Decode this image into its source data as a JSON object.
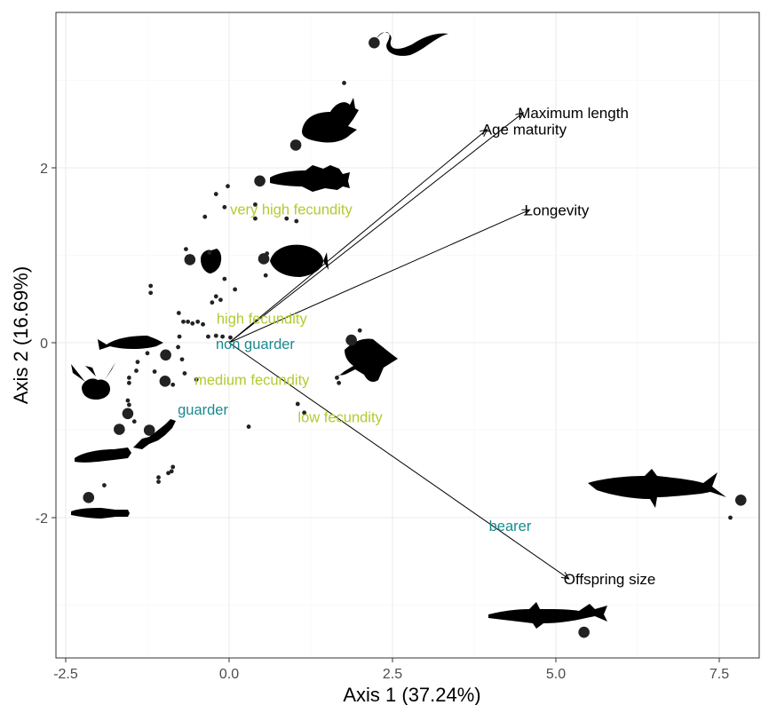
{
  "chart_data": {
    "type": "scatter",
    "xlabel": "Axis 1 (37.24%)",
    "ylabel": "Axis 2 (16.69%)",
    "xlim": [
      -2.6,
      8.2
    ],
    "ylim": [
      -3.65,
      3.8
    ],
    "x_ticks": [
      -2.5,
      0.0,
      2.5,
      5.0,
      7.5
    ],
    "x_tick_labels": [
      "-2.5",
      "0.0",
      "2.5",
      "5.0",
      "7.5"
    ],
    "y_ticks": [
      -2,
      0,
      2
    ],
    "y_tick_labels": [
      "-2",
      "0",
      "2"
    ],
    "grid": true,
    "colors": {
      "black": "#000000",
      "fecundity": "#b5c930",
      "parental_care": "#1a8a8f",
      "point": "#222222",
      "grid": "#ebebeb"
    },
    "vectors": [
      {
        "label": "Maximum length",
        "x": 4.5,
        "y": 2.63
      },
      {
        "label": "Age maturity",
        "x": 3.95,
        "y": 2.44
      },
      {
        "label": "Longevity",
        "x": 4.6,
        "y": 1.52
      },
      {
        "label": "Offspring size",
        "x": 5.2,
        "y": -2.7
      }
    ],
    "factor_labels": [
      {
        "label": "very high fecundity",
        "group": "fecundity",
        "x": 0.95,
        "y": 1.53
      },
      {
        "label": "high fecundity",
        "group": "fecundity",
        "x": 0.5,
        "y": 0.28
      },
      {
        "label": "medium fecundity",
        "group": "fecundity",
        "x": 0.35,
        "y": -0.42
      },
      {
        "label": "low fecundity",
        "group": "fecundity",
        "x": 1.7,
        "y": -0.85
      },
      {
        "label": "non guarder",
        "group": "parental_care",
        "x": 0.4,
        "y": -0.01
      },
      {
        "label": "guarder",
        "group": "parental_care",
        "x": -0.4,
        "y": -0.76
      },
      {
        "label": "bearer",
        "group": "parental_care",
        "x": 4.3,
        "y": -2.09
      }
    ],
    "large_points": [
      {
        "x": 2.22,
        "y": 3.43
      },
      {
        "x": 1.02,
        "y": 2.26
      },
      {
        "x": 0.47,
        "y": 1.85
      },
      {
        "x": -0.6,
        "y": 0.95
      },
      {
        "x": 0.53,
        "y": 0.96
      },
      {
        "x": 1.87,
        "y": 0.03
      },
      {
        "x": -0.97,
        "y": -0.14
      },
      {
        "x": -0.98,
        "y": -0.44
      },
      {
        "x": -1.55,
        "y": -0.81
      },
      {
        "x": -1.68,
        "y": -0.99
      },
      {
        "x": -1.22,
        "y": -1.0
      },
      {
        "x": -2.15,
        "y": -1.77
      },
      {
        "x": 7.83,
        "y": -1.8
      },
      {
        "x": 5.43,
        "y": -3.31
      }
    ],
    "small_points": [
      {
        "x": 1.76,
        "y": 2.97
      },
      {
        "x": -0.02,
        "y": 1.79
      },
      {
        "x": -0.2,
        "y": 1.7
      },
      {
        "x": -0.07,
        "y": 1.55
      },
      {
        "x": 0.4,
        "y": 1.58
      },
      {
        "x": 0.4,
        "y": 1.42
      },
      {
        "x": -0.37,
        "y": 1.44
      },
      {
        "x": 0.88,
        "y": 1.42
      },
      {
        "x": 1.03,
        "y": 1.39
      },
      {
        "x": -0.66,
        "y": 1.07
      },
      {
        "x": -0.3,
        "y": 1.03
      },
      {
        "x": 0.58,
        "y": 1.02
      },
      {
        "x": -0.07,
        "y": 0.73
      },
      {
        "x": 0.09,
        "y": 0.61
      },
      {
        "x": 0.56,
        "y": 0.77
      },
      {
        "x": -1.2,
        "y": 0.65
      },
      {
        "x": -1.2,
        "y": 0.57
      },
      {
        "x": -0.2,
        "y": 0.53
      },
      {
        "x": -0.26,
        "y": 0.46
      },
      {
        "x": -0.13,
        "y": 0.49
      },
      {
        "x": -0.77,
        "y": 0.34
      },
      {
        "x": -0.7,
        "y": 0.24
      },
      {
        "x": -0.63,
        "y": 0.24
      },
      {
        "x": -0.56,
        "y": 0.22
      },
      {
        "x": -0.48,
        "y": 0.24
      },
      {
        "x": -0.4,
        "y": 0.21
      },
      {
        "x": -0.32,
        "y": 0.07
      },
      {
        "x": -0.2,
        "y": 0.08
      },
      {
        "x": -0.1,
        "y": 0.07
      },
      {
        "x": 0.02,
        "y": 0.06
      },
      {
        "x": -0.76,
        "y": 0.07
      },
      {
        "x": -0.78,
        "y": -0.05
      },
      {
        "x": -1.25,
        "y": -0.12
      },
      {
        "x": -1.4,
        "y": -0.22
      },
      {
        "x": -0.72,
        "y": -0.19
      },
      {
        "x": -1.42,
        "y": -0.32
      },
      {
        "x": -1.53,
        "y": -0.4
      },
      {
        "x": -1.53,
        "y": -0.46
      },
      {
        "x": -1.14,
        "y": -0.33
      },
      {
        "x": -0.68,
        "y": -0.35
      },
      {
        "x": -0.5,
        "y": -0.42
      },
      {
        "x": -0.86,
        "y": -0.48
      },
      {
        "x": -1.55,
        "y": -0.66
      },
      {
        "x": -1.53,
        "y": -0.71
      },
      {
        "x": -1.45,
        "y": -0.9
      },
      {
        "x": 2.0,
        "y": 0.14
      },
      {
        "x": 1.65,
        "y": -0.4
      },
      {
        "x": 1.68,
        "y": -0.46
      },
      {
        "x": 1.05,
        "y": -0.7
      },
      {
        "x": 1.15,
        "y": -0.8
      },
      {
        "x": 0.3,
        "y": -0.96
      },
      {
        "x": -0.86,
        "y": -1.42
      },
      {
        "x": -0.88,
        "y": -1.47
      },
      {
        "x": -0.93,
        "y": -1.49
      },
      {
        "x": -1.08,
        "y": -1.54
      },
      {
        "x": -1.08,
        "y": -1.59
      },
      {
        "x": -1.91,
        "y": -1.63
      },
      {
        "x": 7.67,
        "y": -2.0
      }
    ]
  }
}
